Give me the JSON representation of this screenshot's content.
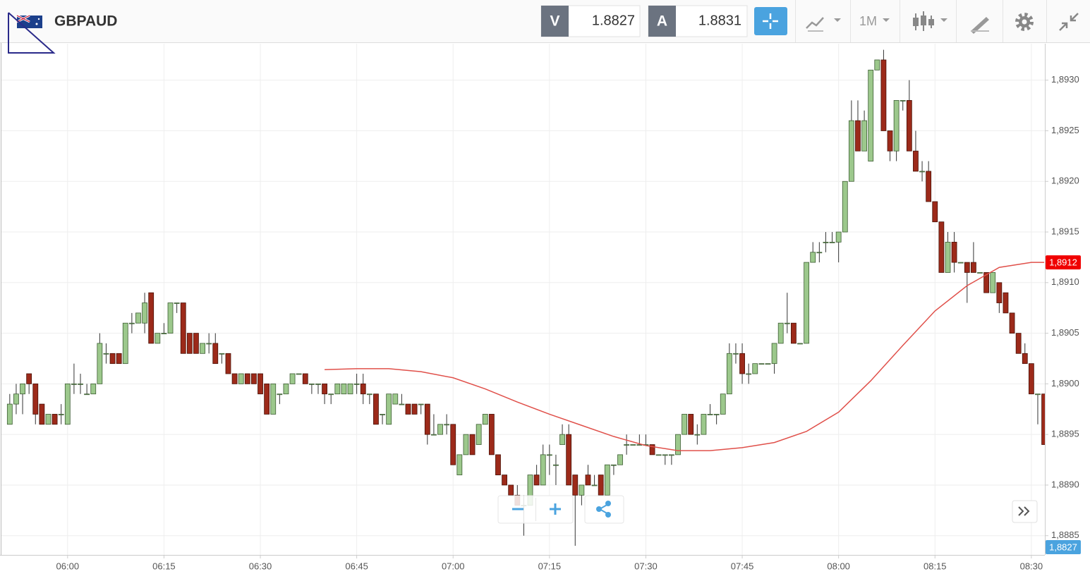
{
  "toolbar": {
    "symbol": "GBPAUD",
    "sell_label": "V",
    "sell_price": 1.8827,
    "buy_label": "A",
    "buy_price": 1.8831,
    "timeframe": "1M"
  },
  "chart_data": {
    "type": "candlestick",
    "up_color": "#9cc88c",
    "down_color": "#9c2a1a",
    "x": [
      351,
      352,
      353,
      354,
      355,
      356,
      357,
      358,
      359,
      360,
      361,
      362,
      363,
      364,
      365,
      366,
      367,
      368,
      369,
      370,
      371,
      372,
      373,
      374,
      375,
      376,
      377,
      378,
      379,
      380,
      381,
      382,
      383,
      384,
      385,
      386,
      387,
      388,
      389,
      390,
      391,
      392,
      393,
      394,
      395,
      396,
      397,
      398,
      399,
      400,
      401,
      402,
      403,
      404,
      405,
      406,
      407,
      408,
      409,
      410,
      411,
      412,
      413,
      414,
      415,
      416,
      417,
      418,
      419,
      420,
      421,
      422,
      423,
      424,
      425,
      426,
      427,
      428,
      429,
      430,
      431,
      432,
      433,
      434,
      435,
      436,
      437,
      438,
      439,
      440,
      441,
      442,
      443,
      444,
      445,
      446,
      447,
      448,
      449,
      450,
      451,
      452,
      453,
      454,
      455,
      456,
      457,
      458,
      459,
      460,
      461,
      462,
      463,
      464,
      465,
      466,
      467,
      468,
      469,
      470,
      471,
      472,
      473,
      474,
      475,
      476,
      477,
      478,
      479,
      480,
      481,
      482,
      483,
      484,
      485,
      486,
      487,
      488,
      489,
      490,
      491,
      492,
      493,
      494,
      495,
      496,
      497,
      498,
      499,
      500,
      501,
      502,
      503,
      504,
      505,
      506,
      507,
      508,
      509,
      510,
      511,
      512
    ],
    "open": [
      1.8896,
      1.8898,
      1.8899,
      1.8901,
      1.89,
      1.8898,
      1.8896,
      1.8897,
      1.8897,
      1.8896,
      1.89,
      1.89,
      1.8899,
      1.8899,
      1.89,
      1.8903,
      1.8903,
      1.8903,
      1.8902,
      1.8906,
      1.8906,
      1.8906,
      1.8909,
      1.8904,
      1.8905,
      1.8905,
      1.8908,
      1.8908,
      1.8905,
      1.8905,
      1.8903,
      1.8904,
      1.8904,
      1.8903,
      1.8903,
      1.8901,
      1.89,
      1.8901,
      1.8901,
      1.8901,
      1.89,
      1.8897,
      1.8899,
      1.8899,
      1.89,
      1.8901,
      1.8901,
      1.89,
      1.89,
      1.89,
      1.8899,
      1.8899,
      1.8899,
      1.8899,
      1.89,
      1.89,
      1.8899,
      1.8899,
      1.8897,
      1.8896,
      1.8898,
      1.8898,
      1.8898,
      1.8898,
      1.8898,
      1.8898,
      1.8895,
      1.8895,
      1.8896,
      1.8896,
      1.8891,
      1.8893,
      1.8895,
      1.8894,
      1.8896,
      1.8897,
      1.8893,
      1.8891,
      1.889,
      1.8889,
      1.8888,
      1.8888,
      1.8891,
      1.889,
      1.8893,
      1.8892,
      1.8894,
      1.8895,
      1.8891,
      1.8889,
      1.8891,
      1.889,
      1.8891,
      1.8889,
      1.8892,
      1.8892,
      1.8894,
      1.8894,
      1.8894,
      1.8894,
      1.8894,
      1.8893,
      1.8893,
      1.8893,
      1.8893,
      1.8895,
      1.8897,
      1.8895,
      1.8895,
      1.8897,
      1.8897,
      1.8897,
      1.8899,
      1.8903,
      1.8903,
      1.8901,
      1.8901,
      1.8902,
      1.8902,
      1.8902,
      1.8904,
      1.8906,
      1.8906,
      1.8904,
      1.8904,
      1.8912,
      1.8913,
      1.8914,
      1.8914,
      1.8914,
      1.8915,
      1.892,
      1.8926,
      1.8923,
      1.8922,
      1.8931,
      1.8932,
      1.8925,
      1.8923,
      1.8928,
      1.8928,
      1.8923,
      1.8921,
      1.8921,
      1.8918,
      1.8916,
      1.8911,
      1.8914,
      1.8912,
      1.8912,
      1.8912,
      1.8911,
      1.8911,
      1.8909,
      1.891,
      1.8909,
      1.8907,
      1.8905,
      1.8903,
      1.8902,
      1.8899,
      1.8899
    ],
    "high": [
      1.8899,
      1.89,
      1.89,
      1.8901,
      1.89,
      1.8898,
      1.8897,
      1.8897,
      1.8898,
      1.89,
      1.8902,
      1.8901,
      1.89,
      1.89,
      1.8905,
      1.8904,
      1.8903,
      1.8903,
      1.8906,
      1.8907,
      1.8907,
      1.8909,
      1.8909,
      1.8905,
      1.8906,
      1.8908,
      1.8908,
      1.8908,
      1.8905,
      1.8905,
      1.8904,
      1.8905,
      1.8905,
      1.8903,
      1.8903,
      1.8901,
      1.8901,
      1.8901,
      1.8901,
      1.8901,
      1.89,
      1.89,
      1.8899,
      1.89,
      1.8901,
      1.8901,
      1.8901,
      1.89,
      1.89,
      1.89,
      1.8899,
      1.89,
      1.89,
      1.89,
      1.8901,
      1.8901,
      1.8899,
      1.8899,
      1.8897,
      1.8899,
      1.8899,
      1.8899,
      1.8898,
      1.8898,
      1.8898,
      1.8898,
      1.8897,
      1.8896,
      1.8897,
      1.8896,
      1.8893,
      1.8895,
      1.8895,
      1.8896,
      1.8897,
      1.8897,
      1.8893,
      1.8891,
      1.889,
      1.889,
      1.8889,
      1.8891,
      1.8892,
      1.8894,
      1.8894,
      1.8893,
      1.8896,
      1.8896,
      1.8891,
      1.889,
      1.8892,
      1.8891,
      1.8891,
      1.8892,
      1.8892,
      1.8893,
      1.8895,
      1.8894,
      1.8895,
      1.8895,
      1.8894,
      1.8893,
      1.8893,
      1.8893,
      1.8895,
      1.8897,
      1.8897,
      1.8896,
      1.8897,
      1.8898,
      1.8897,
      1.8899,
      1.8904,
      1.8904,
      1.8904,
      1.8902,
      1.8902,
      1.8902,
      1.8902,
      1.8904,
      1.8906,
      1.8909,
      1.8906,
      1.8904,
      1.8912,
      1.8914,
      1.8914,
      1.8915,
      1.8915,
      1.8915,
      1.892,
      1.8928,
      1.8928,
      1.8927,
      1.8931,
      1.8932,
      1.8933,
      1.8925,
      1.8928,
      1.8928,
      1.893,
      1.8925,
      1.8922,
      1.8922,
      1.8918,
      1.8916,
      1.8915,
      1.8915,
      1.8912,
      1.8912,
      1.8914,
      1.8911,
      1.8911,
      1.8911,
      1.891,
      1.8909,
      1.8907,
      1.8905,
      1.8904,
      1.8902,
      1.8899,
      1.8899
    ],
    "low": [
      1.8896,
      1.8897,
      1.8897,
      1.8899,
      1.8896,
      1.8896,
      1.8896,
      1.8896,
      1.8896,
      1.8896,
      1.8899,
      1.8899,
      1.8899,
      1.8899,
      1.89,
      1.8902,
      1.8902,
      1.8902,
      1.8902,
      1.8905,
      1.8906,
      1.8905,
      1.8904,
      1.8904,
      1.8905,
      1.8905,
      1.8907,
      1.8903,
      1.8903,
      1.8903,
      1.8903,
      1.8903,
      1.8902,
      1.8902,
      1.8901,
      1.89,
      1.89,
      1.89,
      1.89,
      1.8899,
      1.8897,
      1.8897,
      1.8898,
      1.8899,
      1.89,
      1.8901,
      1.89,
      1.8899,
      1.8899,
      1.8898,
      1.8898,
      1.8899,
      1.8899,
      1.8899,
      1.8899,
      1.8898,
      1.8898,
      1.8896,
      1.8896,
      1.8896,
      1.8898,
      1.8898,
      1.8897,
      1.8897,
      1.8897,
      1.8894,
      1.8895,
      1.8895,
      1.8895,
      1.8892,
      1.8891,
      1.8893,
      1.8893,
      1.8894,
      1.8896,
      1.8893,
      1.8891,
      1.889,
      1.8889,
      1.8888,
      1.8885,
      1.8888,
      1.889,
      1.889,
      1.8891,
      1.889,
      1.8894,
      1.889,
      1.8884,
      1.8888,
      1.889,
      1.889,
      1.8889,
      1.8889,
      1.8891,
      1.8892,
      1.8893,
      1.8894,
      1.8894,
      1.8894,
      1.8893,
      1.8893,
      1.8892,
      1.8892,
      1.8893,
      1.8895,
      1.8895,
      1.8894,
      1.8895,
      1.8897,
      1.8896,
      1.8897,
      1.8899,
      1.8902,
      1.89,
      1.89,
      1.8901,
      1.8902,
      1.8902,
      1.8901,
      1.8904,
      1.8905,
      1.8904,
      1.8904,
      1.8904,
      1.8912,
      1.8912,
      1.8913,
      1.8914,
      1.8912,
      1.8915,
      1.892,
      1.8923,
      1.8923,
      1.8922,
      1.8931,
      1.8925,
      1.8922,
      1.8922,
      1.8927,
      1.8923,
      1.8921,
      1.892,
      1.8918,
      1.8916,
      1.8911,
      1.8911,
      1.8911,
      1.8912,
      1.8908,
      1.8911,
      1.8911,
      1.8909,
      1.8909,
      1.8907,
      1.8907,
      1.8905,
      1.8903,
      1.8902,
      1.8899,
      1.8896,
      1.8894
    ],
    "close": [
      1.8898,
      1.8899,
      1.89,
      1.89,
      1.8897,
      1.8896,
      1.8897,
      1.8896,
      1.8897,
      1.89,
      1.89,
      1.89,
      1.8899,
      1.89,
      1.8904,
      1.8903,
      1.8902,
      1.8902,
      1.8906,
      1.8906,
      1.8907,
      1.8908,
      1.8904,
      1.8905,
      1.8905,
      1.8908,
      1.8908,
      1.8903,
      1.8903,
      1.8903,
      1.8904,
      1.8904,
      1.8902,
      1.8903,
      1.8901,
      1.89,
      1.8901,
      1.89,
      1.89,
      1.8899,
      1.8897,
      1.89,
      1.8899,
      1.89,
      1.8901,
      1.8901,
      1.89,
      1.89,
      1.89,
      1.8899,
      1.8899,
      1.89,
      1.89,
      1.89,
      1.89,
      1.8899,
      1.8899,
      1.8896,
      1.8897,
      1.8899,
      1.8899,
      1.8898,
      1.8897,
      1.8897,
      1.8898,
      1.8895,
      1.8895,
      1.8896,
      1.8896,
      1.8892,
      1.8893,
      1.8895,
      1.8893,
      1.8896,
      1.8897,
      1.8893,
      1.8891,
      1.889,
      1.8889,
      1.8888,
      1.8888,
      1.8891,
      1.889,
      1.8893,
      1.8893,
      1.8892,
      1.8895,
      1.889,
      1.8889,
      1.889,
      1.889,
      1.889,
      1.8889,
      1.8892,
      1.8892,
      1.8893,
      1.8894,
      1.8894,
      1.8894,
      1.8894,
      1.8893,
      1.8893,
      1.8893,
      1.8893,
      1.8895,
      1.8897,
      1.8895,
      1.8895,
      1.8897,
      1.8897,
      1.8897,
      1.8899,
      1.8903,
      1.8903,
      1.8901,
      1.8901,
      1.8902,
      1.8902,
      1.8902,
      1.8904,
      1.8906,
      1.8906,
      1.8904,
      1.8904,
      1.8912,
      1.8913,
      1.8913,
      1.8914,
      1.8914,
      1.8915,
      1.892,
      1.8926,
      1.8923,
      1.8926,
      1.8931,
      1.8932,
      1.8925,
      1.8923,
      1.8928,
      1.8928,
      1.8923,
      1.8921,
      1.8921,
      1.8918,
      1.8916,
      1.8911,
      1.8914,
      1.8912,
      1.8912,
      1.8911,
      1.8911,
      1.8911,
      1.8909,
      1.8911,
      1.8908,
      1.8907,
      1.8905,
      1.8903,
      1.8902,
      1.8899,
      1.8899,
      1.8894
    ],
    "line": {
      "color": "#e0504a",
      "x": [
        400,
        405,
        410,
        415,
        420,
        425,
        430,
        435,
        440,
        445,
        450,
        455,
        460,
        465,
        470,
        475,
        480,
        485,
        490,
        495,
        500,
        505,
        510,
        512
      ],
      "values": [
        1.89014,
        1.89015,
        1.89015,
        1.89012,
        1.89006,
        1.88995,
        1.88982,
        1.8897,
        1.88959,
        1.88948,
        1.88939,
        1.88934,
        1.88934,
        1.88937,
        1.88942,
        1.88953,
        1.88972,
        1.89003,
        1.89038,
        1.89072,
        1.89097,
        1.89115,
        1.8912,
        1.8912
      ]
    },
    "xlim": [
      349.7,
      512.1
    ],
    "xticks": [
      {
        "value": 360,
        "label": "06:00"
      },
      {
        "value": 375,
        "label": "06:15"
      },
      {
        "value": 390,
        "label": "06:30"
      },
      {
        "value": 405,
        "label": "06:45"
      },
      {
        "value": 420,
        "label": "07:00"
      },
      {
        "value": 435,
        "label": "07:15"
      },
      {
        "value": 450,
        "label": "07:30"
      },
      {
        "value": 465,
        "label": "07:45"
      },
      {
        "value": 480,
        "label": "08:00"
      },
      {
        "value": 495,
        "label": "08:15"
      },
      {
        "value": 510,
        "label": "08:30"
      }
    ],
    "ylim": [
      1.88831,
      1.89336
    ],
    "yticks": [
      {
        "value": 1.8885,
        "label": "1,8885"
      },
      {
        "value": 1.889,
        "label": "1,8890"
      },
      {
        "value": 1.8895,
        "label": "1,8895"
      },
      {
        "value": 1.89,
        "label": "1,8900"
      },
      {
        "value": 1.8905,
        "label": "1,8905"
      },
      {
        "value": 1.891,
        "label": "1,8910"
      },
      {
        "value": 1.8915,
        "label": "1,8915"
      },
      {
        "value": 1.892,
        "label": "1,8920"
      },
      {
        "value": 1.8925,
        "label": "1,8925"
      },
      {
        "value": 1.893,
        "label": "1,8930"
      }
    ],
    "grid": true,
    "price_tags": [
      {
        "value": 1.8912,
        "label": "1,8912",
        "color": "#f00000"
      }
    ],
    "bid_tag": {
      "label": "1,8827",
      "color": "#4aa3df"
    }
  }
}
